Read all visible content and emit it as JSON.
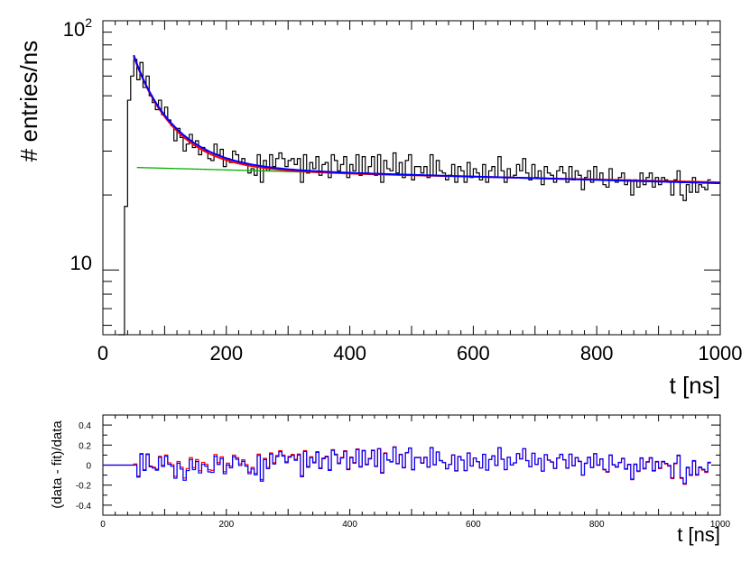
{
  "chart_data": [
    {
      "type": "line",
      "panel": "main",
      "ylabel": "# entries/ns",
      "xlabel": "t [ns]",
      "yscale": "log",
      "xlim": [
        0,
        1000
      ],
      "ylim": [
        5.5,
        100
      ],
      "xticks": [
        0,
        200,
        400,
        600,
        800,
        1000
      ],
      "xtick_labels": [
        "0",
        "200",
        "400",
        "600",
        "800",
        "1000"
      ],
      "ytick_labels": [
        {
          "value": 10,
          "base": "10",
          "exp": ""
        },
        {
          "value": 100,
          "base": "10",
          "exp": "2"
        }
      ],
      "colors": {
        "data": "#000000",
        "red": "#ff0000",
        "blue": "#0000ff",
        "green": "#00b000"
      },
      "series": [
        {
          "name": "data",
          "style": "histogram",
          "bin_width": 5,
          "x_start": 25,
          "values": [
            5.5,
            5.5,
            18,
            48,
            60,
            70,
            58,
            68,
            54,
            60,
            50,
            47,
            44,
            48,
            42,
            45,
            40,
            38,
            33,
            37,
            34,
            30,
            32,
            35,
            31,
            33,
            29,
            31,
            30,
            28,
            27.5,
            32,
            29,
            30.5,
            26,
            28,
            27,
            30,
            29,
            27,
            28,
            26.5,
            24.5,
            25.5,
            24,
            29,
            22.5,
            27.5,
            25,
            29,
            26,
            28,
            29.5,
            28,
            26,
            27.5,
            28,
            26.5,
            28,
            22.5,
            29,
            24.5,
            27,
            25.5,
            28.5,
            24,
            26.5,
            27,
            23.5,
            29,
            27.5,
            25,
            26.5,
            28.5,
            23.5,
            26.5,
            25,
            29,
            24,
            28.5,
            24.5,
            26,
            28.5,
            24,
            29,
            22.5,
            27.5,
            25.5,
            25,
            29.5,
            24.5,
            27,
            23.5,
            27.5,
            29,
            23,
            26,
            26,
            24.5,
            26,
            23.5,
            29,
            24,
            27.5,
            25,
            24.5,
            23,
            24,
            26.5,
            22.5,
            26,
            25,
            22.5,
            27,
            23.5,
            25.5,
            24.5,
            23,
            26.5,
            22.5,
            25,
            26,
            23.5,
            28.5,
            25,
            22.5,
            25.5,
            23.5,
            24,
            26.5,
            25,
            28,
            24.5,
            23,
            26.5,
            23.5,
            25,
            22,
            26,
            24.5,
            24,
            22.5,
            25,
            26,
            24.5,
            22.5,
            26,
            23,
            25,
            24,
            21,
            23.5,
            25,
            22.5,
            26,
            23,
            24.5,
            22,
            21.5,
            25.5,
            23,
            22.5,
            23.5,
            24.5,
            22,
            23,
            20,
            23,
            21.5,
            24.5,
            22,
            23.5,
            24.5,
            21.5,
            23.5,
            22,
            23.5,
            23,
            22.5,
            20,
            23,
            25,
            20,
            19,
            22,
            20.5,
            23.5,
            20.5,
            22,
            21.5,
            21,
            23
          ]
        },
        {
          "name": "fit-red",
          "function": "11.5*exp(-(t-50)/22) + 35*exp(-(t-50)/58) + 25.6*exp(-t/7700)",
          "x_range": [
            50,
            1000
          ]
        },
        {
          "name": "fit-blue",
          "function": "12*exp(-(t-50)/20) + 35*exp(-(t-50)/60) + 26*exp(-t/6500)",
          "x_range": [
            50,
            1000
          ]
        },
        {
          "name": "background-green",
          "function": "26*exp(-t/6500)",
          "x_range": [
            55,
            1000
          ]
        }
      ]
    },
    {
      "type": "line",
      "panel": "residuals",
      "ylabel": "(data - fit)/data",
      "xlabel": "t [ns]",
      "xlim": [
        0,
        1000
      ],
      "ylim": [
        -0.5,
        0.5
      ],
      "xticks": [
        0,
        200,
        400,
        600,
        800,
        1000
      ],
      "xtick_labels": [
        "0",
        "200",
        "400",
        "600",
        "800",
        "1000"
      ],
      "yticks": [
        0.4,
        0.2,
        0,
        -0.2,
        -0.4
      ],
      "ytick_labels": [
        "0.4",
        "0.2",
        "0",
        "-0.2",
        "-0.4"
      ],
      "series": [
        {
          "name": "residual-red",
          "description": "(data - red fit)/data computed per bin for t >= 50, 0 before"
        },
        {
          "name": "residual-blue",
          "description": "(data - blue fit)/data computed per bin for t >= 50, 0 before"
        }
      ]
    }
  ]
}
